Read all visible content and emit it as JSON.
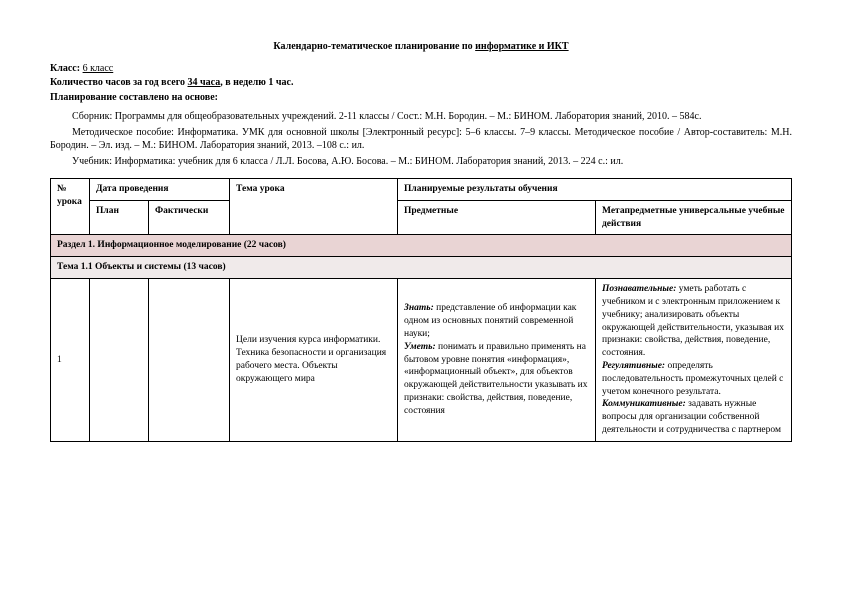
{
  "title": {
    "pre": "Календарно-тематическое планирование по ",
    "underlined": "информатике и ИКТ"
  },
  "meta": {
    "class_label": "Класс:",
    "class_value": "6 класс",
    "hours_label": "Количество часов за год всего ",
    "hours_value": "34 часа",
    "hours_tail": ", в неделю 1 час.",
    "basis_label": "Планирование составлено на основе:"
  },
  "sources": {
    "s1": "Сборник: Программы для общеобразовательных учреждений. 2-11 классы / Сост.: М.Н. Бородин. – М.: БИНОМ. Лаборатория знаний, 2010. – 584с.",
    "s2": "Методическое пособие: Информатика. УМК для основной школы [Электронный ресурс]: 5–6 классы. 7–9 классы. Методическое пособие / Автор-составитель: М.Н. Бородин. – Эл. изд. – М.: БИНОМ. Лаборатория знаний, 2013. –108 с.: ил.",
    "s3": "Учебник: Информатика: учебник для 6 класса / Л.Л. Босова, А.Ю. Босова. – М.: БИНОМ. Лаборатория знаний, 2013. – 224 с.: ил."
  },
  "headers": {
    "num": "№ урока",
    "date": "Дата проведения",
    "date_plan": "План",
    "date_fact": "Фактически",
    "topic": "Тема урока",
    "results": "Планируемые результаты обучения",
    "subject": "Предметные",
    "meta_uud": "Метапредметные универсальные учебные действия"
  },
  "sections": {
    "section1": "Раздел 1. Информационное моделирование (22 часов)",
    "topic1_1": "Тема 1.1 Объекты и системы (13 часов)"
  },
  "row1": {
    "num": "1",
    "topic": "Цели изучения курса информатики. Техника безопасности и организация рабочего места. Объекты окружающего мира",
    "subject": {
      "znat_label": "Знать:",
      "znat_text": " представление об информации как одном из основных понятий современной науки;",
      "umet_label": "Уметь:",
      "umet_text": " понимать и правильно применять на бытовом уровне понятия «информация», «информационный объект», для объектов окружающей действительности указывать их признаки: свойства, действия, поведение, состояния"
    },
    "uud": {
      "p_label": "Познавательные:",
      "p_text": " уметь работать с учебником и с электронным приложением к учебнику; анализировать объекты окружающей действительности, указывая их признаки: свойства, действия, поведение, состояния.",
      "r_label": "Регулятивные:",
      "r_text": " определять последовательность промежуточных целей с учетом конечного результата.",
      "k_label": "Коммуникативные:",
      "k_text": " задавать нужные вопросы для организации собственной деятельности и сотрудничества с партнером"
    }
  }
}
